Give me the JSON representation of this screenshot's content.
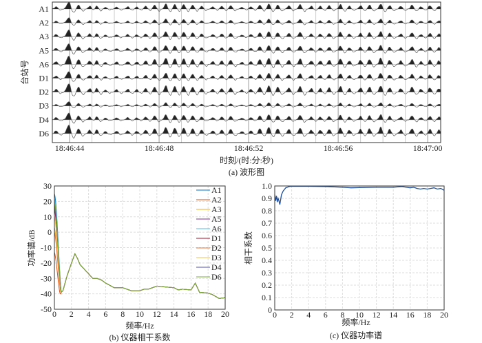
{
  "chart_data": [
    {
      "type": "line",
      "id": "a",
      "title": "(a) 波形图",
      "xlabel": "时刻/(时:分:秒)",
      "ylabel": "台站号",
      "traces": [
        "A1",
        "A2",
        "A3",
        "A5",
        "A6",
        "D1",
        "D2",
        "D3",
        "D4",
        "D6"
      ],
      "trace_gain": [
        0.8,
        0.6,
        0.8,
        0.8,
        1.0,
        0.8,
        1.0,
        0.5,
        0.8,
        1.0
      ],
      "xticks": [
        {
          "t": 44,
          "label": "18:46:44"
        },
        {
          "t": 48,
          "label": "18:46:48"
        },
        {
          "t": 52,
          "label": "18:46:52"
        },
        {
          "t": 56,
          "label": "18:46:56"
        },
        {
          "t": 60,
          "label": "18:47:00"
        }
      ],
      "xlim_seconds_after_18_46_40": [
        3.23,
        20.58
      ],
      "grid_step_seconds": 1,
      "peak_times": [
        43.4,
        43.9,
        44.0,
        44.4,
        44.9,
        45.2,
        45.6,
        46.1,
        46.6,
        47.0,
        47.4,
        47.8,
        48.3,
        48.7,
        49.1,
        49.5,
        49.9,
        50.4,
        50.8,
        51.2,
        51.7,
        52.1,
        52.5,
        52.9,
        53.3,
        53.8,
        54.3,
        54.8,
        55.2,
        55.6,
        56.1,
        56.5,
        57.0,
        57.4,
        57.9,
        58.3,
        58.8,
        59.3,
        59.7,
        60.1,
        60.5,
        60.9
      ],
      "peak_amplitudes": [
        0.4,
        0.6,
        1.0,
        0.7,
        0.5,
        0.6,
        0.3,
        0.35,
        0.4,
        0.35,
        0.5,
        0.7,
        0.9,
        0.8,
        0.8,
        0.7,
        0.5,
        0.4,
        0.5,
        0.6,
        0.3,
        0.4,
        0.7,
        0.9,
        0.7,
        0.6,
        0.8,
        0.5,
        0.5,
        0.6,
        0.8,
        0.5,
        0.6,
        0.7,
        0.9,
        0.6,
        0.5,
        0.7,
        0.4,
        0.6,
        0.5,
        0.4
      ]
    },
    {
      "type": "line",
      "id": "b",
      "caption": "(b) 仪器相干系数",
      "xlabel": "频率/Hz",
      "ylabel": "功率谱/dB",
      "xlim": [
        0,
        20
      ],
      "ylim": [
        -50,
        30
      ],
      "xticks": [
        0,
        2,
        4,
        6,
        8,
        10,
        12,
        14,
        16,
        18,
        20
      ],
      "yticks": [
        30,
        20,
        10,
        0,
        -10,
        -20,
        -30,
        -40,
        -50
      ],
      "legend": "top-right",
      "series": [
        {
          "name": "A1",
          "color": "#0072BD",
          "start_db": 25
        },
        {
          "name": "A2",
          "color": "#D95319",
          "start_db": -13
        },
        {
          "name": "A3",
          "color": "#EDB120",
          "start_db": 3
        },
        {
          "name": "A5",
          "color": "#7E2F8E",
          "start_db": 17
        },
        {
          "name": "A6",
          "color": "#4DBEEE",
          "start_db": 22
        },
        {
          "name": "D1",
          "color": "#A2142F",
          "start_db": 15
        },
        {
          "name": "D2",
          "color": "#E8743B",
          "start_db": 0
        },
        {
          "name": "D3",
          "color": "#F0C050",
          "start_db": 10
        },
        {
          "name": "D4",
          "color": "#5050A0",
          "start_db": 18
        },
        {
          "name": "D6",
          "color": "#77AC30",
          "start_db": 20
        }
      ],
      "common_curve": {
        "f": [
          0.8,
          1.0,
          1.5,
          2.0,
          2.4,
          2.7,
          3.0,
          3.5,
          4.0,
          4.5,
          5.0,
          5.5,
          6.0,
          7.0,
          8.0,
          8.5,
          9.0,
          10.0,
          10.5,
          11.0,
          12.0,
          13.0,
          14.0,
          14.5,
          15.0,
          16.0,
          16.5,
          17.0,
          18.0,
          18.5,
          19.3,
          20.0
        ],
        "db": [
          -39,
          -38,
          -28,
          -20,
          -14,
          -17,
          -21,
          -24,
          -27,
          -30,
          -30,
          -31,
          -33,
          -36,
          -36,
          -37,
          -38,
          -38,
          -37,
          -37,
          -35,
          -35.5,
          -36,
          -37.5,
          -37,
          -37.5,
          -33,
          -39,
          -39.5,
          -40.5,
          -43,
          -42.5
        ]
      }
    },
    {
      "type": "line",
      "id": "c",
      "caption": "(c) 仪器功率谱",
      "xlabel": "频率/Hz",
      "ylabel": "相干系数",
      "xlim": [
        0,
        20
      ],
      "ylim": [
        0,
        1
      ],
      "xticks": [
        0,
        2,
        4,
        6,
        8,
        10,
        12,
        14,
        16,
        18,
        20
      ],
      "yticks": [
        "1.0",
        "0.9",
        "0.8",
        "0.7",
        "0.6",
        "0.5",
        "0.4",
        "0.3",
        "0.2",
        "0.1",
        "0"
      ],
      "color": "#1f4e9a",
      "f": [
        0,
        0.1,
        0.2,
        0.3,
        0.4,
        0.5,
        0.6,
        0.8,
        1.0,
        1.3,
        1.7,
        2,
        4,
        6,
        8,
        9,
        10,
        12,
        14,
        15,
        16,
        16.4,
        16.8,
        17.2,
        17.6,
        18,
        18.4,
        18.8,
        19.2,
        19.6,
        20
      ],
      "coh": [
        0.93,
        0.88,
        0.92,
        0.87,
        0.9,
        0.88,
        0.85,
        0.93,
        0.96,
        0.985,
        0.995,
        0.998,
        0.997,
        0.995,
        0.99,
        0.985,
        0.987,
        0.99,
        0.99,
        0.995,
        0.985,
        0.99,
        0.98,
        0.975,
        0.98,
        0.975,
        0.98,
        0.985,
        0.975,
        0.98,
        0.965
      ]
    }
  ]
}
